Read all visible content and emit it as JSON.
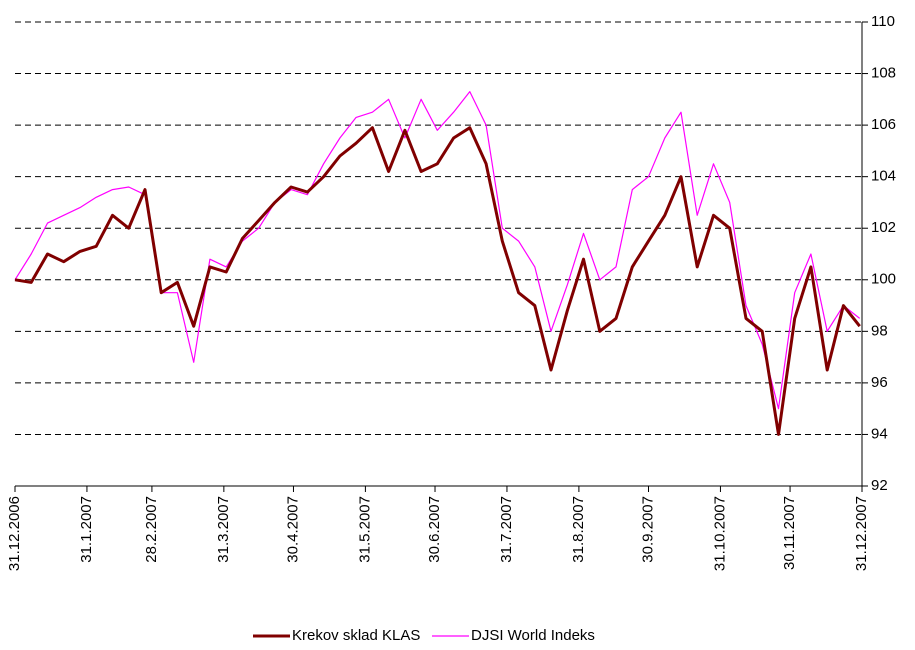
{
  "chart_data": {
    "type": "line",
    "x": [
      "31.12.2006",
      "7.1.2007",
      "14.1.2007",
      "21.1.2007",
      "28.1.2007",
      "4.2.2007",
      "11.2.2007",
      "18.2.2007",
      "25.2.2007",
      "4.3.2007",
      "11.3.2007",
      "18.3.2007",
      "25.3.2007",
      "1.4.2007",
      "8.4.2007",
      "15.4.2007",
      "22.4.2007",
      "29.4.2007",
      "6.5.2007",
      "13.5.2007",
      "20.5.2007",
      "27.5.2007",
      "3.6.2007",
      "10.6.2007",
      "17.6.2007",
      "24.6.2007",
      "1.7.2007",
      "8.7.2007",
      "15.7.2007",
      "22.7.2007",
      "29.7.2007",
      "5.8.2007",
      "12.8.2007",
      "19.8.2007",
      "26.8.2007",
      "2.9.2007",
      "9.9.2007",
      "16.9.2007",
      "23.9.2007",
      "30.9.2007",
      "7.10.2007",
      "14.10.2007",
      "21.10.2007",
      "28.10.2007",
      "4.11.2007",
      "11.11.2007",
      "18.11.2007",
      "25.11.2007",
      "2.12.2007",
      "9.12.2007",
      "16.12.2007",
      "23.12.2007",
      "30.12.2007"
    ],
    "series": [
      {
        "name": "Krekov sklad KLAS",
        "color": "#800000",
        "values": [
          100,
          99.9,
          101.0,
          100.7,
          101.1,
          101.3,
          102.5,
          102.0,
          103.5,
          99.5,
          99.9,
          98.2,
          100.5,
          100.3,
          101.6,
          102.3,
          103.0,
          103.6,
          103.4,
          104.0,
          104.8,
          105.3,
          105.9,
          104.2,
          105.8,
          104.2,
          104.5,
          105.5,
          105.9,
          104.5,
          101.5,
          99.5,
          99.0,
          96.5,
          98.8,
          100.8,
          98.0,
          98.5,
          100.5,
          101.5,
          102.5,
          104.0,
          100.5,
          102.5,
          102.0,
          98.5,
          98.0,
          94.0,
          98.5,
          100.5,
          96.5,
          99.0,
          98.2
        ]
      },
      {
        "name": "DJSI World Indeks",
        "color": "#ff00ff",
        "values": [
          100,
          101.0,
          102.2,
          102.5,
          102.8,
          103.2,
          103.5,
          103.6,
          103.3,
          99.5,
          99.5,
          96.8,
          100.8,
          100.5,
          101.5,
          102.0,
          103.0,
          103.5,
          103.3,
          104.5,
          105.5,
          106.3,
          106.5,
          107.0,
          105.5,
          107.0,
          105.8,
          106.5,
          107.3,
          106.0,
          102.0,
          101.5,
          100.5,
          98.0,
          99.8,
          101.8,
          100.0,
          100.5,
          103.5,
          104.0,
          105.5,
          106.5,
          102.5,
          104.5,
          103.0,
          99.0,
          97.5,
          95.0,
          99.5,
          101.0,
          98.0,
          99.0,
          98.5
        ]
      }
    ],
    "xlim": [
      "31.12.2006",
      "31.12.2007"
    ],
    "xticks": [
      "31.12.2006",
      "31.1.2007",
      "28.2.2007",
      "31.3.2007",
      "30.4.2007",
      "31.5.2007",
      "30.6.2007",
      "31.7.2007",
      "31.8.2007",
      "30.9.2007",
      "31.10.2007",
      "30.11.2007",
      "31.12.2007"
    ],
    "ylim": [
      92,
      110
    ],
    "yticks": [
      92,
      94,
      96,
      98,
      100,
      102,
      104,
      106,
      108,
      110
    ],
    "grid": true
  }
}
